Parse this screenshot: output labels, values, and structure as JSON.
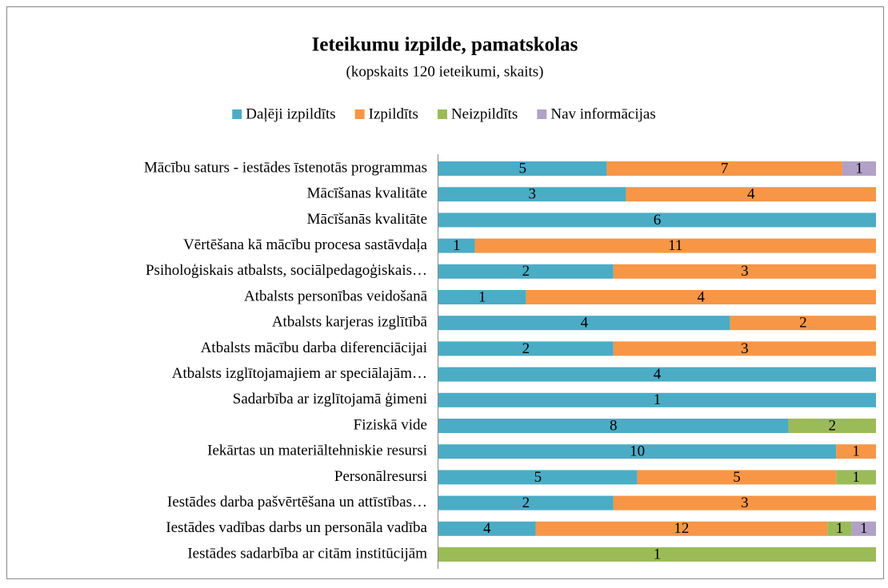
{
  "chart_data": {
    "type": "stacked-bar-100",
    "orientation": "horizontal",
    "title": "Ieteikumu izpilde, pamatskolas",
    "subtitle": "(kopskaits 120 ieteikumi, skaits)",
    "categories": [
      "Mācību saturs - iestādes īstenotās programmas",
      "Mācīšanas kvalitāte",
      "Mācīšanās kvalitāte",
      "Vērtēšana kā mācību procesa sastāvdaļa",
      "Psiholoģiskais atbalsts, sociālpedagoģiskais…",
      "Atbalsts personības veidošanā",
      "Atbalsts karjeras izglītībā",
      "Atbalsts mācību darba diferenciācijai",
      "Atbalsts izglītojamajiem ar speciālajām…",
      "Sadarbība ar izglītojamā ģimeni",
      "Fiziskā vide",
      "Iekārtas un materiāltehniskie resursi",
      "Personālresursi",
      "Iestādes darba pašvērtēšana un attīstības…",
      "Iestādes vadības darbs un personāla vadība",
      "Iestādes sadarbība ar citām institūcijām"
    ],
    "series": [
      {
        "name": "Daļēji izpildīts",
        "color": "#4bacc6",
        "values": [
          5,
          3,
          6,
          1,
          2,
          1,
          4,
          2,
          4,
          1,
          8,
          10,
          5,
          2,
          4,
          null
        ]
      },
      {
        "name": "Izpildīts",
        "color": "#f79646",
        "values": [
          7,
          4,
          null,
          11,
          3,
          4,
          2,
          3,
          null,
          null,
          null,
          1,
          5,
          3,
          12,
          null
        ]
      },
      {
        "name": "Neizpildīts",
        "color": "#9bbb59",
        "values": [
          null,
          null,
          null,
          null,
          null,
          null,
          null,
          null,
          null,
          null,
          2,
          null,
          1,
          null,
          1,
          1
        ]
      },
      {
        "name": "Nav informācijas",
        "color": "#b2a1c7",
        "values": [
          1,
          null,
          null,
          null,
          null,
          null,
          null,
          null,
          null,
          null,
          null,
          null,
          null,
          null,
          1,
          null
        ]
      }
    ],
    "legend": "top"
  }
}
